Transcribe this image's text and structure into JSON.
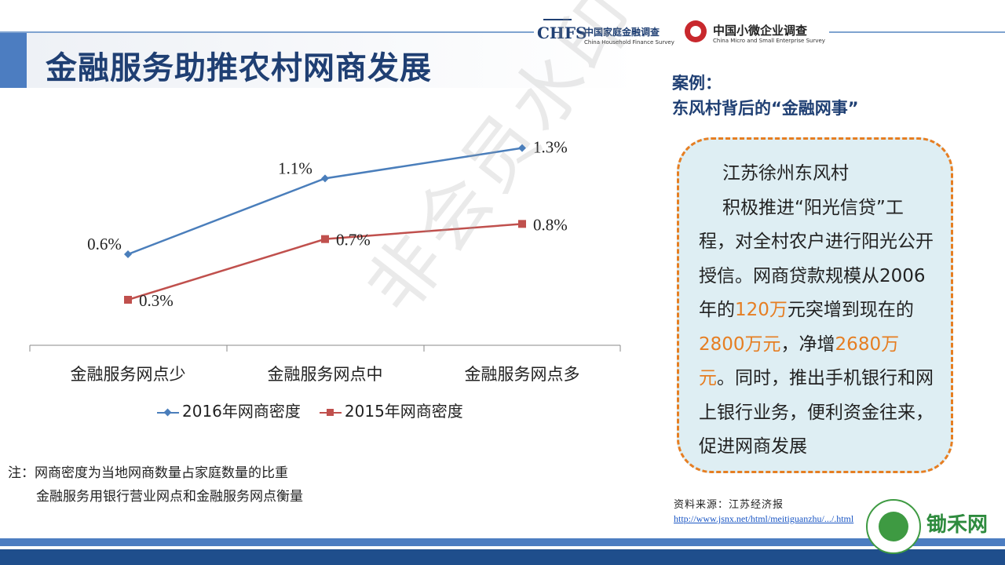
{
  "page_title": "金融服务助推农村网商发展",
  "logos": {
    "chfs_mark": "CHFS",
    "chfs_cn": "中国家庭金融调查",
    "chfs_en": "China Household Finance Survey",
    "smes_cn": "中国小微企业调查",
    "smes_en": "China Micro and Small Enterprise Survey"
  },
  "chart_data": {
    "type": "line",
    "categories": [
      "金融服务网点少",
      "金融服务网点中",
      "金融服务网点多"
    ],
    "series": [
      {
        "name": "2016年网商密度",
        "values": [
          0.6,
          1.1,
          1.3
        ],
        "labels": [
          "0.6%",
          "1.1%",
          "1.3%"
        ],
        "color": "#4a7ebb",
        "marker": "diamond"
      },
      {
        "name": "2015年网商密度",
        "values": [
          0.3,
          0.7,
          0.8
        ],
        "labels": [
          "0.3%",
          "0.7%",
          "0.8%"
        ],
        "color": "#c0504d",
        "marker": "square"
      }
    ],
    "ylim": [
      0.0,
      1.5
    ],
    "grid": false,
    "legend_position": "bottom"
  },
  "notes": {
    "line1": "注：网商密度为当地网商数量占家庭数量的比重",
    "line2": "金融服务用银行营业网点和金融服务网点衡量"
  },
  "case": {
    "heading1": "案例：",
    "heading2": "东风村背后的“金融网事”",
    "line1": "江苏徐州东风村",
    "part1": "积极推进“阳光信贷”工程，对全村农户进行阳光公开授信。网商贷款规模从2006年的",
    "hl1": "120万",
    "part2": "元突增到现在的",
    "hl2": "2800万元",
    "part3": "，净增",
    "hl3": "2680万元",
    "part4": "。同时，推出手机银行和网上银行业务，便利资金往来，促进网商发展"
  },
  "source": {
    "label": "资料来源：江苏经济报",
    "url": "http://www.jsnx.net/html/meitiguanzhu/.../.html"
  },
  "watermark": "非会员水印",
  "footer_brand": "锄禾网",
  "colors": {
    "accent": "#4c7dc1",
    "title": "#1f3f73",
    "highlight": "#e67e22",
    "box_bg": "#deeef3"
  }
}
